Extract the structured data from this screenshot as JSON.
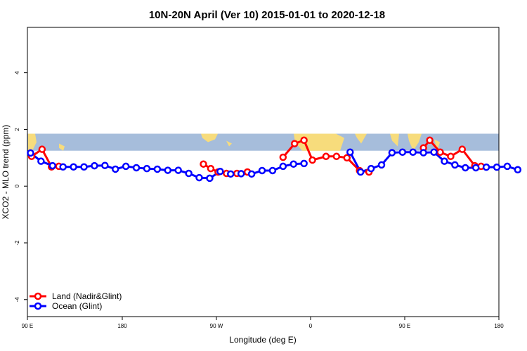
{
  "chart_data": {
    "type": "line",
    "title": "10N-20N April (Ver 10)   2015-01-01 to 2020-12-18",
    "xlabel": "Longitude (deg E)",
    "ylabel": "XCO2 - MLO trend (ppm)",
    "x_axis": {
      "range_deg_e": [
        90,
        450
      ],
      "ticks": [
        {
          "value": 90,
          "label": "90 E"
        },
        {
          "value": 180,
          "label": "180"
        },
        {
          "value": 270,
          "label": "90 W"
        },
        {
          "value": 360,
          "label": "0"
        },
        {
          "value": 450,
          "label": "90 E"
        },
        {
          "value": 540,
          "label": "180"
        }
      ],
      "view_range": [
        90,
        540
      ]
    },
    "y_axis": {
      "range": [
        -4.6,
        5.6
      ],
      "ticks": [
        -4,
        -2,
        0,
        2,
        4
      ]
    },
    "map_band": {
      "y_range": [
        1.25,
        1.85
      ],
      "ocean_color": "#a6bddb",
      "land_color": "#f7dc7c"
    },
    "series": [
      {
        "name": "Land (Nadir&Glint)",
        "color": "#ff0000",
        "segments": [
          [
            [
              94,
              1.05
            ],
            [
              104,
              1.3
            ],
            [
              113,
              0.68
            ],
            [
              120,
              0.7
            ]
          ],
          [
            [
              258,
              0.78
            ],
            [
              265,
              0.62
            ],
            [
              272,
              0.5
            ],
            [
              280,
              0.45
            ],
            [
              290,
              0.45
            ],
            [
              300,
              0.5
            ]
          ],
          [
            [
              334,
              1.02
            ],
            [
              345,
              1.5
            ],
            [
              354,
              1.62
            ],
            [
              362,
              0.92
            ],
            [
              375,
              1.05
            ],
            [
              385,
              1.05
            ],
            [
              395,
              1.0
            ],
            [
              407,
              0.55
            ],
            [
              416,
              0.5
            ]
          ],
          [
            [
              468,
              1.35
            ],
            [
              474,
              1.62
            ],
            [
              484,
              1.2
            ],
            [
              494,
              1.05
            ],
            [
              505,
              1.3
            ],
            [
              517,
              0.72
            ],
            [
              523,
              0.7
            ]
          ]
        ]
      },
      {
        "name": "Ocean (Glint)",
        "color": "#0000ff",
        "segments": [
          [
            [
              93,
              1.17
            ],
            [
              103,
              0.88
            ],
            [
              114,
              0.72
            ],
            [
              124,
              0.68
            ],
            [
              134,
              0.68
            ],
            [
              144,
              0.68
            ],
            [
              154,
              0.72
            ],
            [
              164,
              0.73
            ],
            [
              174,
              0.6
            ],
            [
              184,
              0.7
            ],
            [
              194,
              0.65
            ],
            [
              204,
              0.62
            ],
            [
              214,
              0.6
            ],
            [
              224,
              0.56
            ],
            [
              234,
              0.56
            ],
            [
              244,
              0.45
            ],
            [
              254,
              0.3
            ],
            [
              264,
              0.28
            ],
            [
              274,
              0.52
            ],
            [
              284,
              0.43
            ],
            [
              294,
              0.44
            ],
            [
              304,
              0.43
            ],
            [
              314,
              0.55
            ],
            [
              324,
              0.55
            ],
            [
              334,
              0.7
            ],
            [
              344,
              0.78
            ],
            [
              354,
              0.8
            ]
          ],
          [
            [
              398,
              1.2
            ],
            [
              408,
              0.5
            ],
            [
              418,
              0.62
            ],
            [
              428,
              0.75
            ],
            [
              438,
              1.18
            ],
            [
              448,
              1.2
            ],
            [
              458,
              1.2
            ],
            [
              468,
              1.18
            ],
            [
              478,
              1.2
            ],
            [
              488,
              0.88
            ],
            [
              498,
              0.75
            ],
            [
              508,
              0.65
            ],
            [
              518,
              0.65
            ],
            [
              528,
              0.67
            ],
            [
              538,
              0.67
            ],
            [
              548,
              0.7
            ],
            [
              558,
              0.58
            ]
          ]
        ]
      }
    ],
    "legend": {
      "placement": "bottom-left"
    }
  }
}
